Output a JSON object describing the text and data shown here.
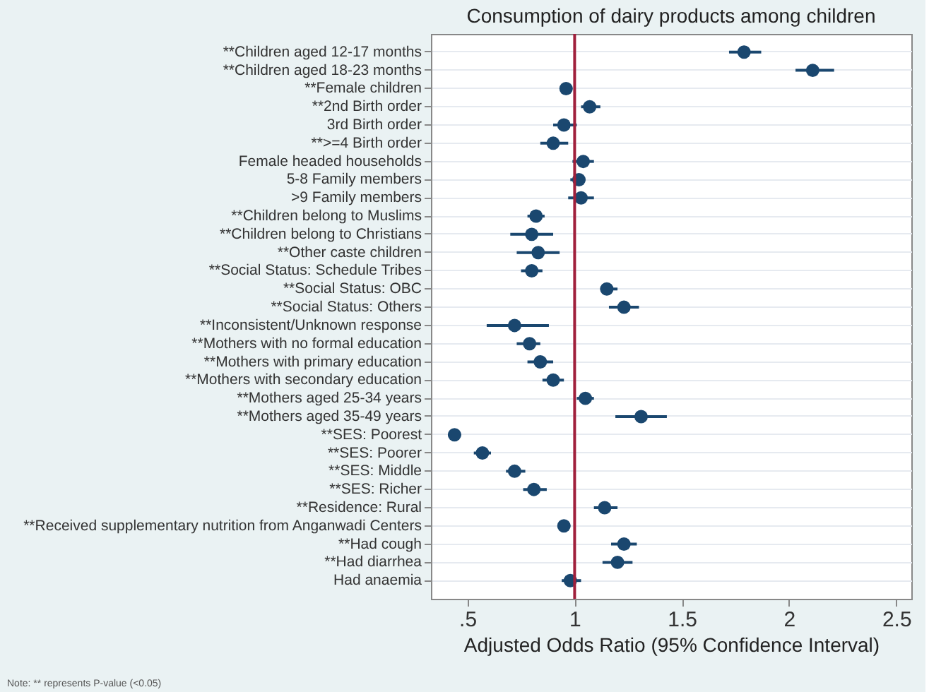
{
  "chart_data": {
    "type": "scatter",
    "orientation": "horizontal",
    "title": "Consumption of dairy products among children",
    "xlabel": "Adjusted Odds Ratio (95% Confidence Interval)",
    "categories": [
      "**Children aged 12-17 months",
      "**Children aged 18-23 months",
      "**Female children",
      "**2nd Birth order",
      "3rd Birth order",
      "**>=4 Birth order",
      "Female headed households",
      "5-8 Family members",
      ">9 Family members",
      "**Children belong to Muslims",
      "**Children belong to Christians",
      "**Other caste children",
      "**Social Status: Schedule Tribes",
      "**Social Status: OBC",
      "**Social Status: Others",
      "**Inconsistent/Unknown response",
      "**Mothers with no formal education",
      "**Mothers with primary education",
      "**Mothers with secondary education",
      "**Mothers aged 25-34 years",
      "**Mothers aged 35-49 years",
      "**SES: Poorest",
      "**SES: Poorer",
      "**SES: Middle",
      "**SES: Richer",
      "**Residence: Rural",
      "**Received supplementary nutrition from Anganwadi Centers",
      "**Had cough",
      "**Had diarrhea",
      "Had anaemia"
    ],
    "series": [
      {
        "color": "#1a476f",
        "values": [
          1.79,
          2.11,
          0.96,
          1.07,
          0.95,
          0.9,
          1.04,
          1.02,
          1.03,
          0.82,
          0.8,
          0.83,
          0.8,
          1.15,
          1.23,
          0.72,
          0.79,
          0.84,
          0.9,
          1.05,
          1.31,
          0.44,
          0.57,
          0.72,
          0.81,
          1.14,
          0.95,
          1.23,
          1.2,
          0.98
        ],
        "errors": [
          [
            1.72,
            1.87
          ],
          [
            2.03,
            2.21
          ],
          [
            0.93,
            0.99
          ],
          [
            1.03,
            1.12
          ],
          [
            0.9,
            1.01
          ],
          [
            0.84,
            0.97
          ],
          [
            0.99,
            1.09
          ],
          [
            0.98,
            1.05
          ],
          [
            0.97,
            1.09
          ],
          [
            0.78,
            0.86
          ],
          [
            0.7,
            0.9
          ],
          [
            0.73,
            0.93
          ],
          [
            0.75,
            0.85
          ],
          [
            1.12,
            1.2
          ],
          [
            1.16,
            1.3
          ],
          [
            0.59,
            0.88
          ],
          [
            0.73,
            0.84
          ],
          [
            0.78,
            0.9
          ],
          [
            0.85,
            0.95
          ],
          [
            1.01,
            1.09
          ],
          [
            1.19,
            1.43
          ],
          [
            0.41,
            0.47
          ],
          [
            0.53,
            0.61
          ],
          [
            0.68,
            0.77
          ],
          [
            0.76,
            0.87
          ],
          [
            1.09,
            1.2
          ],
          [
            0.92,
            0.98
          ],
          [
            1.17,
            1.29
          ],
          [
            1.13,
            1.27
          ],
          [
            0.94,
            1.03
          ]
        ]
      }
    ],
    "xlim": [
      0.33,
      2.57
    ],
    "xticks": [
      {
        "value": 0.5,
        "label": ".5"
      },
      1,
      1.5,
      2,
      2.5
    ],
    "ref_lines": [
      {
        "axis": "x",
        "value": 1,
        "color": "#a0203c"
      }
    ],
    "grid": "y",
    "marker": "circle",
    "annotations": [
      "Note: ** represents P-value (<0.05)"
    ]
  }
}
